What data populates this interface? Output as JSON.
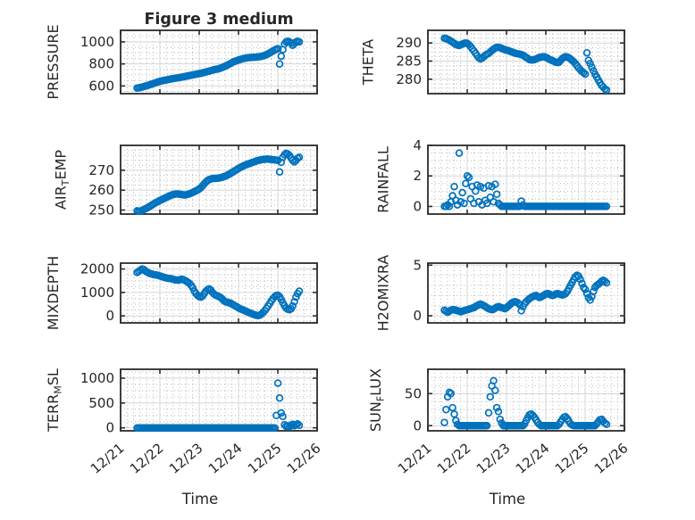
{
  "chart_data": {
    "type": "scatter",
    "title": "Figure 3 medium",
    "xlabel": "Time",
    "marker": {
      "shape": "open-circle",
      "color": "#0072BD"
    },
    "grid": {
      "major": "solid-light-gray",
      "minor": "dotted"
    },
    "x": {
      "lim_days": [
        0,
        5
      ],
      "major_tick_labels": [
        "12/21",
        "12/22",
        "12/23",
        "12/24",
        "12/25",
        "12/26"
      ],
      "minor_step_days": 0.16667
    },
    "sampling": {
      "t0_days": 0.42,
      "step_days": 0.0416667,
      "count": 100
    },
    "subplots": [
      {
        "name": "PRESSURE",
        "row": 0,
        "col": 0,
        "ylabel_segments": [
          [
            "PRESSURE",
            false
          ]
        ],
        "ylim": [
          530,
          1105
        ],
        "yticks": [
          600,
          800,
          1000
        ],
        "yminor_step": 50,
        "values": [
          580,
          583,
          586,
          590,
          594,
          598,
          602,
          607,
          612,
          617,
          622,
          627,
          632,
          637,
          641,
          645,
          648,
          652,
          655,
          658,
          661,
          664,
          667,
          670,
          672,
          674,
          676,
          679,
          682,
          685,
          688,
          691,
          694,
          697,
          700,
          703,
          706,
          709,
          712,
          715,
          719,
          723,
          727,
          731,
          735,
          739,
          743,
          747,
          750,
          753,
          757,
          762,
          768,
          774,
          781,
          788,
          796,
          804,
          812,
          819,
          825,
          830,
          835,
          840,
          845,
          849,
          852,
          855,
          857,
          858,
          859,
          860,
          861,
          862,
          864,
          866,
          869,
          873,
          878,
          884,
          891,
          899,
          908,
          917,
          926,
          933,
          938,
          800,
          870,
          930,
          980,
          1000,
          1005,
          1000,
          990,
          970,
          985,
          1000,
          1005,
          1000
        ]
      },
      {
        "name": "THETA",
        "row": 0,
        "col": 1,
        "ylabel_segments": [
          [
            "THETA",
            false
          ]
        ],
        "ylim": [
          276,
          293.5
        ],
        "yticks": [
          280,
          285,
          290
        ],
        "yminor_step": 1.25,
        "values": [
          291.3,
          291.2,
          291.0,
          290.8,
          290.5,
          290.2,
          289.9,
          289.6,
          289.4,
          289.3,
          289.5,
          289.7,
          289.9,
          290.0,
          289.9,
          289.5,
          289.0,
          288.4,
          287.8,
          287.2,
          286.5,
          285.9,
          285.6,
          285.8,
          286.2,
          286.6,
          286.9,
          287.1,
          287.5,
          287.9,
          288.3,
          288.6,
          288.8,
          288.8,
          288.7,
          288.5,
          288.3,
          288.1,
          288.0,
          287.9,
          287.7,
          287.5,
          287.4,
          287.2,
          287.1,
          287.0,
          286.9,
          286.8,
          286.6,
          286.3,
          286.0,
          285.7,
          285.4,
          285.3,
          285.3,
          285.4,
          285.6,
          285.8,
          286.0,
          286.1,
          286.2,
          286.2,
          286.0,
          285.8,
          285.5,
          285.3,
          285.1,
          284.9,
          284.7,
          284.6,
          284.7,
          285.2,
          285.7,
          286.0,
          286.2,
          286.1,
          285.9,
          285.6,
          285.2,
          284.8,
          284.3,
          283.7,
          283.1,
          282.6,
          282.1,
          281.8,
          281.4,
          287.3,
          285.2,
          284.3,
          283.3,
          282.3,
          281.4,
          280.6,
          279.8,
          279.0,
          278.3,
          277.8,
          277.3,
          277.0
        ]
      },
      {
        "name": "AIR_TEMP",
        "row": 1,
        "col": 0,
        "ylabel_segments": [
          [
            "AIR",
            false
          ],
          [
            "T",
            true
          ],
          [
            "EMP",
            false
          ]
        ],
        "ylim": [
          248,
          282.5
        ],
        "yticks": [
          250,
          260,
          270
        ],
        "yminor_step": 2.5,
        "values": [
          249.6,
          249.4,
          249.5,
          249.8,
          250.2,
          250.6,
          251.0,
          251.5,
          252.0,
          252.5,
          253.0,
          253.5,
          254.0,
          254.4,
          254.8,
          255.2,
          255.6,
          256.0,
          256.4,
          256.8,
          257.2,
          257.5,
          257.8,
          258.0,
          258.1,
          258.1,
          258.0,
          257.8,
          257.7,
          257.6,
          257.7,
          257.9,
          258.2,
          258.5,
          258.9,
          259.3,
          259.7,
          260.1,
          260.6,
          261.3,
          262.2,
          263.2,
          264.1,
          264.8,
          265.3,
          265.6,
          265.8,
          265.9,
          265.9,
          266.0,
          266.1,
          266.3,
          266.5,
          266.8,
          267.1,
          267.5,
          267.9,
          268.4,
          268.9,
          269.4,
          269.9,
          270.4,
          270.9,
          271.4,
          271.8,
          272.2,
          272.6,
          272.9,
          273.2,
          273.5,
          273.8,
          274.1,
          274.4,
          274.7,
          274.9,
          275.1,
          275.3,
          275.4,
          275.5,
          275.6,
          275.6,
          275.5,
          275.4,
          275.3,
          275.2,
          275.1,
          275.0,
          269.2,
          274.0,
          276.5,
          277.8,
          278.5,
          278.2,
          277.5,
          276.2,
          275.0,
          274.2,
          275.0,
          276.0,
          276.5
        ]
      },
      {
        "name": "RAINFALL",
        "row": 1,
        "col": 1,
        "ylabel_segments": [
          [
            "RAINFALL",
            false
          ]
        ],
        "ylim": [
          -0.5,
          4
        ],
        "yticks": [
          0,
          2,
          4
        ],
        "yminor_step": 0.5,
        "values": [
          0,
          0,
          0.1,
          0,
          0.3,
          0.7,
          1.3,
          0.4,
          0.1,
          3.5,
          0.3,
          0.9,
          0.2,
          1.5,
          2.0,
          1.9,
          0.5,
          1.3,
          0.2,
          1.0,
          1.4,
          0.3,
          1.3,
          0.1,
          1.2,
          0.4,
          0.2,
          1.35,
          0.6,
          1.3,
          0.3,
          1.45,
          0.8,
          0.2,
          0.1,
          0,
          0,
          0,
          0,
          0,
          0,
          0,
          0,
          0,
          0,
          0,
          0,
          0.35,
          0.1,
          0,
          0,
          0,
          0,
          0,
          0,
          0,
          0,
          0,
          0,
          0,
          0,
          0,
          0,
          0,
          0,
          0,
          0,
          0,
          0,
          0,
          0,
          0,
          0,
          0,
          0,
          0,
          0,
          0,
          0,
          0,
          0,
          0,
          0,
          0,
          0,
          0,
          0,
          0,
          0,
          0,
          0,
          0,
          0,
          0,
          0,
          0,
          0,
          0,
          0,
          0
        ]
      },
      {
        "name": "MIXDEPTH",
        "row": 2,
        "col": 0,
        "ylabel_segments": [
          [
            "MIXDEPTH",
            false
          ]
        ],
        "ylim": [
          -300,
          2250
        ],
        "yticks": [
          0,
          1000,
          2000
        ],
        "yminor_step": 250,
        "values": [
          1850,
          1900,
          1950,
          2000,
          1980,
          1920,
          1870,
          1830,
          1800,
          1780,
          1760,
          1750,
          1740,
          1730,
          1700,
          1680,
          1650,
          1630,
          1610,
          1600,
          1590,
          1580,
          1560,
          1540,
          1530,
          1520,
          1540,
          1560,
          1550,
          1520,
          1480,
          1430,
          1380,
          1300,
          1200,
          1050,
          950,
          870,
          820,
          800,
          850,
          950,
          1050,
          1120,
          1150,
          1100,
          1000,
          930,
          880,
          850,
          820,
          780,
          720,
          650,
          600,
          580,
          560,
          540,
          500,
          460,
          420,
          380,
          340,
          300,
          270,
          240,
          210,
          180,
          150,
          120,
          90,
          60,
          40,
          20,
          10,
          30,
          80,
          150,
          230,
          320,
          420,
          530,
          640,
          740,
          820,
          870,
          880,
          820,
          700,
          560,
          430,
          330,
          280,
          260,
          300,
          420,
          600,
          800,
          950,
          1050
        ]
      },
      {
        "name": "H2OMIXRA",
        "row": 2,
        "col": 1,
        "ylabel_segments": [
          [
            "H2OMIXRA",
            false
          ]
        ],
        "ylim": [
          -0.7,
          5.2
        ],
        "yticks": [
          0,
          5
        ],
        "yminor_step": 1,
        "values": [
          0.55,
          0.45,
          0.35,
          0.45,
          0.55,
          0.6,
          0.6,
          0.55,
          0.5,
          0.45,
          0.4,
          0.45,
          0.5,
          0.55,
          0.6,
          0.65,
          0.7,
          0.75,
          0.8,
          0.9,
          1.0,
          1.1,
          1.15,
          1.1,
          1.0,
          0.9,
          0.8,
          0.7,
          0.65,
          0.6,
          0.65,
          0.75,
          0.85,
          0.9,
          0.85,
          0.8,
          0.75,
          0.7,
          0.8,
          0.95,
          1.1,
          1.25,
          1.35,
          1.4,
          1.35,
          1.25,
          1.1,
          0.5,
          0.9,
          1.2,
          1.4,
          1.55,
          1.7,
          1.8,
          1.9,
          1.95,
          2.0,
          1.9,
          1.8,
          1.85,
          1.95,
          2.05,
          2.15,
          2.2,
          2.15,
          2.05,
          2.0,
          2.05,
          2.15,
          2.2,
          2.15,
          2.1,
          2.05,
          2.1,
          2.2,
          2.4,
          2.7,
          3.0,
          3.3,
          3.6,
          3.85,
          4.0,
          3.9,
          3.6,
          3.2,
          2.8,
          2.6,
          2.2,
          1.8,
          1.55,
          1.9,
          2.4,
          2.8,
          3.0,
          3.1,
          3.25,
          3.4,
          3.5,
          3.4,
          3.25
        ]
      },
      {
        "name": "TERR_MSL",
        "row": 3,
        "col": 0,
        "ylabel_segments": [
          [
            "TERR",
            false
          ],
          [
            "M",
            true
          ],
          [
            "SL",
            false
          ]
        ],
        "ylim": [
          -60,
          1180
        ],
        "yticks": [
          0,
          500,
          1000
        ],
        "yminor_step": 125,
        "values": [
          0,
          0,
          0,
          0,
          0,
          0,
          0,
          0,
          0,
          0,
          0,
          0,
          0,
          0,
          0,
          0,
          0,
          0,
          0,
          0,
          0,
          0,
          0,
          0,
          0,
          0,
          0,
          0,
          0,
          0,
          0,
          0,
          0,
          0,
          0,
          0,
          0,
          0,
          0,
          0,
          0,
          0,
          0,
          0,
          0,
          0,
          0,
          0,
          0,
          0,
          0,
          0,
          0,
          0,
          0,
          0,
          0,
          0,
          0,
          0,
          0,
          0,
          0,
          0,
          0,
          0,
          0,
          0,
          0,
          0,
          0,
          0,
          0,
          0,
          0,
          0,
          0,
          0,
          0,
          0,
          0,
          0,
          0,
          0,
          0,
          250,
          900,
          600,
          300,
          230,
          60,
          30,
          40,
          20,
          50,
          70,
          40,
          60,
          80,
          50
        ]
      },
      {
        "name": "SUN_FLUX",
        "row": 3,
        "col": 1,
        "ylabel_segments": [
          [
            "SUN",
            false
          ],
          [
            "F",
            true
          ],
          [
            "LUX",
            false
          ]
        ],
        "ylim": [
          -8,
          88
        ],
        "yticks": [
          0,
          50
        ],
        "yminor_step": 12.5,
        "values": [
          5,
          25,
          45,
          52,
          50,
          28,
          18,
          8,
          2,
          0,
          0,
          0,
          0,
          0,
          0,
          0,
          0,
          0,
          0,
          0,
          0,
          0,
          0,
          0,
          0,
          0,
          0,
          20,
          45,
          62,
          70,
          55,
          28,
          22,
          10,
          4,
          0,
          0,
          0,
          0,
          0,
          0,
          0,
          0,
          0,
          0,
          0,
          0,
          0,
          3,
          8,
          13,
          17,
          18,
          16,
          13,
          9,
          5,
          2,
          0,
          0,
          0,
          0,
          0,
          0,
          0,
          0,
          0,
          0,
          0,
          2,
          6,
          10,
          13,
          14,
          11,
          7,
          3,
          1,
          0,
          0,
          0,
          0,
          0,
          0,
          0,
          0,
          0,
          0,
          0,
          0,
          0,
          0,
          3,
          6,
          9,
          10,
          7,
          4,
          2
        ]
      }
    ]
  }
}
